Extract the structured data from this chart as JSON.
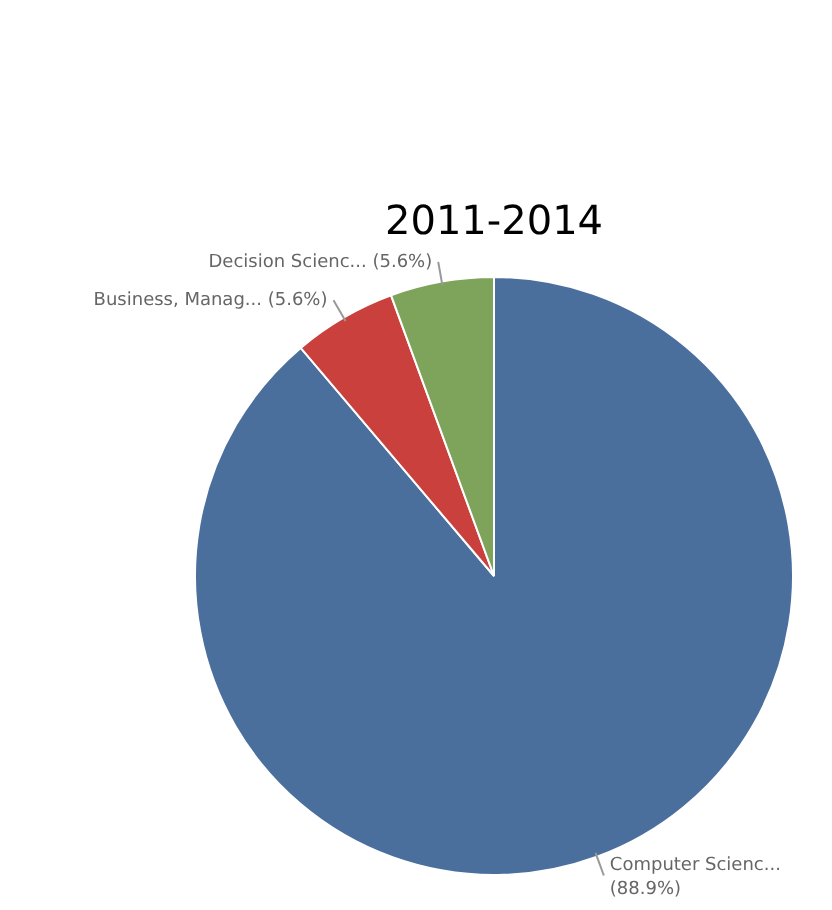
{
  "chart_data": {
    "type": "pie",
    "title": "2011-2014",
    "categories": [
      "Computer Scienc...",
      "Business, Manag...",
      "Decision Scienc..."
    ],
    "values": [
      88.9,
      5.6,
      5.6
    ],
    "value_labels": [
      "(88.9%)",
      "(5.6%)",
      "(5.6%)"
    ],
    "colors": [
      "#4a6f9c",
      "#c9403c",
      "#7ea35a"
    ],
    "legend": false
  }
}
